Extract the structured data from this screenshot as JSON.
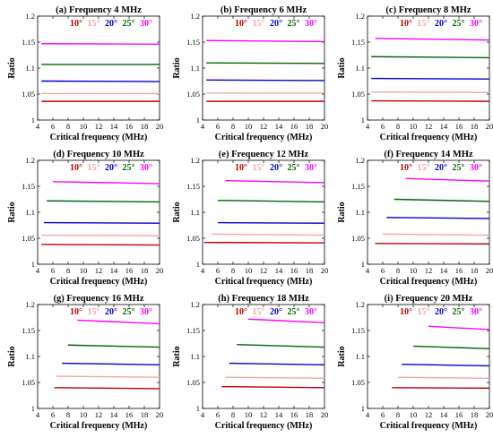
{
  "legend_colors": {
    "10°": "#c00000",
    "15°": "#f4a6a6",
    "20°": "#0000cc",
    "25°": "#006400",
    "30°": "#ff00ff"
  },
  "chart_data": [
    {
      "type": "line",
      "title": "(a) Frequency 4 MHz",
      "xlabel": "Critical frequency (MHz)",
      "ylabel": "Ratio",
      "xlim": [
        4,
        20
      ],
      "ylim": [
        1,
        1.2
      ],
      "xticks": [
        4,
        6,
        8,
        10,
        12,
        14,
        16,
        18,
        20
      ],
      "yticks": [
        1,
        1.05,
        1.1,
        1.15,
        1.2
      ],
      "grid": false,
      "legend_position": "top",
      "series": [
        {
          "name": "10°",
          "color": "#c00000",
          "x": [
            4.5,
            20
          ],
          "y": [
            1.036,
            1.036
          ]
        },
        {
          "name": "15°",
          "color": "#f4a6a6",
          "x": [
            4.5,
            20
          ],
          "y": [
            1.051,
            1.051
          ]
        },
        {
          "name": "20°",
          "color": "#0000cc",
          "x": [
            4.5,
            20
          ],
          "y": [
            1.075,
            1.074
          ]
        },
        {
          "name": "25°",
          "color": "#006400",
          "x": [
            4.5,
            20
          ],
          "y": [
            1.107,
            1.107
          ]
        },
        {
          "name": "30°",
          "color": "#ff00ff",
          "x": [
            4.5,
            20
          ],
          "y": [
            1.147,
            1.146
          ]
        }
      ]
    },
    {
      "type": "line",
      "title": "(b) Frequency 6 MHz",
      "xlabel": "Critical frequency (MHz)",
      "ylabel": "Ratio",
      "xlim": [
        4,
        20
      ],
      "ylim": [
        1,
        1.2
      ],
      "xticks": [
        4,
        6,
        8,
        10,
        12,
        14,
        16,
        18,
        20
      ],
      "yticks": [
        1,
        1.05,
        1.1,
        1.15,
        1.2
      ],
      "grid": false,
      "legend_position": "top",
      "series": [
        {
          "name": "10°",
          "color": "#c00000",
          "x": [
            4.5,
            20
          ],
          "y": [
            1.036,
            1.036
          ]
        },
        {
          "name": "15°",
          "color": "#f4a6a6",
          "x": [
            4.5,
            20
          ],
          "y": [
            1.052,
            1.052
          ]
        },
        {
          "name": "20°",
          "color": "#0000cc",
          "x": [
            4.5,
            20
          ],
          "y": [
            1.077,
            1.076
          ]
        },
        {
          "name": "25°",
          "color": "#006400",
          "x": [
            4.5,
            20
          ],
          "y": [
            1.11,
            1.109
          ]
        },
        {
          "name": "30°",
          "color": "#ff00ff",
          "x": [
            4.5,
            20
          ],
          "y": [
            1.153,
            1.151
          ]
        }
      ]
    },
    {
      "type": "line",
      "title": "(c) Frequency 8 MHz",
      "xlabel": "Critical frequency (MHz)",
      "ylabel": "Ratio",
      "xlim": [
        4,
        20
      ],
      "ylim": [
        1,
        1.2
      ],
      "xticks": [
        4,
        6,
        8,
        10,
        12,
        14,
        16,
        18,
        20
      ],
      "yticks": [
        1,
        1.05,
        1.1,
        1.15,
        1.2
      ],
      "grid": false,
      "legend_position": "top",
      "series": [
        {
          "name": "10°",
          "color": "#c00000",
          "x": [
            4.5,
            20
          ],
          "y": [
            1.037,
            1.036
          ]
        },
        {
          "name": "15°",
          "color": "#f4a6a6",
          "x": [
            4.5,
            20
          ],
          "y": [
            1.054,
            1.053
          ]
        },
        {
          "name": "20°",
          "color": "#0000cc",
          "x": [
            4.5,
            20
          ],
          "y": [
            1.08,
            1.079
          ]
        },
        {
          "name": "25°",
          "color": "#006400",
          "x": [
            4.5,
            20
          ],
          "y": [
            1.122,
            1.12
          ]
        },
        {
          "name": "30°",
          "color": "#ff00ff",
          "x": [
            5,
            20
          ],
          "y": [
            1.157,
            1.154
          ]
        }
      ]
    },
    {
      "type": "line",
      "title": "(d) Frequency 10 MHz",
      "xlabel": "Critical frequency (MHz)",
      "ylabel": "Ratio",
      "xlim": [
        4,
        20
      ],
      "ylim": [
        1,
        1.2
      ],
      "xticks": [
        4,
        6,
        8,
        10,
        12,
        14,
        16,
        18,
        20
      ],
      "yticks": [
        1,
        1.05,
        1.1,
        1.15,
        1.2
      ],
      "grid": false,
      "legend_position": "top",
      "series": [
        {
          "name": "10°",
          "color": "#c00000",
          "x": [
            4.5,
            20
          ],
          "y": [
            1.038,
            1.037
          ]
        },
        {
          "name": "15°",
          "color": "#f4a6a6",
          "x": [
            4.5,
            20
          ],
          "y": [
            1.056,
            1.055
          ]
        },
        {
          "name": "20°",
          "color": "#0000cc",
          "x": [
            4.8,
            20
          ],
          "y": [
            1.08,
            1.079
          ]
        },
        {
          "name": "25°",
          "color": "#006400",
          "x": [
            5.2,
            20
          ],
          "y": [
            1.122,
            1.12
          ]
        },
        {
          "name": "30°",
          "color": "#ff00ff",
          "x": [
            6,
            20
          ],
          "y": [
            1.159,
            1.155
          ]
        }
      ]
    },
    {
      "type": "line",
      "title": "(e) Frequency 12 MHz",
      "xlabel": "Critical frequency (MHz)",
      "ylabel": "Ratio",
      "xlim": [
        4,
        20
      ],
      "ylim": [
        1,
        1.2
      ],
      "xticks": [
        4,
        6,
        8,
        10,
        12,
        14,
        16,
        18,
        20
      ],
      "yticks": [
        1,
        1.05,
        1.1,
        1.15,
        1.2
      ],
      "grid": false,
      "legend_position": "top",
      "series": [
        {
          "name": "10°",
          "color": "#c00000",
          "x": [
            4.2,
            20
          ],
          "y": [
            1.042,
            1.041
          ]
        },
        {
          "name": "15°",
          "color": "#f4a6a6",
          "x": [
            5.2,
            20
          ],
          "y": [
            1.058,
            1.056
          ]
        },
        {
          "name": "20°",
          "color": "#0000cc",
          "x": [
            6,
            20
          ],
          "y": [
            1.08,
            1.079
          ]
        },
        {
          "name": "25°",
          "color": "#006400",
          "x": [
            6,
            20
          ],
          "y": [
            1.123,
            1.12
          ]
        },
        {
          "name": "30°",
          "color": "#ff00ff",
          "x": [
            7,
            20
          ],
          "y": [
            1.161,
            1.157
          ]
        }
      ]
    },
    {
      "type": "line",
      "title": "(f) Frequency 14 MHz",
      "xlabel": "Critical frequency (MHz)",
      "ylabel": "Ratio",
      "xlim": [
        4,
        20
      ],
      "ylim": [
        1,
        1.2
      ],
      "xticks": [
        4,
        6,
        8,
        10,
        12,
        14,
        16,
        18,
        20
      ],
      "yticks": [
        1,
        1.05,
        1.1,
        1.15,
        1.2
      ],
      "grid": false,
      "legend_position": "top",
      "series": [
        {
          "name": "10°",
          "color": "#c00000",
          "x": [
            5,
            20
          ],
          "y": [
            1.04,
            1.039
          ]
        },
        {
          "name": "15°",
          "color": "#f4a6a6",
          "x": [
            6,
            20
          ],
          "y": [
            1.058,
            1.056
          ]
        },
        {
          "name": "20°",
          "color": "#0000cc",
          "x": [
            6.5,
            20
          ],
          "y": [
            1.09,
            1.088
          ]
        },
        {
          "name": "25°",
          "color": "#006400",
          "x": [
            7.5,
            20
          ],
          "y": [
            1.125,
            1.121
          ]
        },
        {
          "name": "30°",
          "color": "#ff00ff",
          "x": [
            9,
            20
          ],
          "y": [
            1.165,
            1.16
          ]
        }
      ]
    },
    {
      "type": "line",
      "title": "(g) Frequency 16 MHz",
      "xlabel": "Critical frequency (MHz)",
      "ylabel": "Ratio",
      "xlim": [
        4,
        20
      ],
      "ylim": [
        1,
        1.2
      ],
      "xticks": [
        4,
        6,
        8,
        10,
        12,
        14,
        16,
        18,
        20
      ],
      "yticks": [
        1,
        1.05,
        1.1,
        1.15,
        1.2
      ],
      "grid": false,
      "legend_position": "top",
      "series": [
        {
          "name": "10°",
          "color": "#c00000",
          "x": [
            6.2,
            20
          ],
          "y": [
            1.04,
            1.038
          ]
        },
        {
          "name": "15°",
          "color": "#f4a6a6",
          "x": [
            6.5,
            20
          ],
          "y": [
            1.062,
            1.06
          ]
        },
        {
          "name": "20°",
          "color": "#0000cc",
          "x": [
            7.2,
            20
          ],
          "y": [
            1.087,
            1.084
          ]
        },
        {
          "name": "25°",
          "color": "#006400",
          "x": [
            8,
            20
          ],
          "y": [
            1.122,
            1.118
          ]
        },
        {
          "name": "30°",
          "color": "#ff00ff",
          "x": [
            9.2,
            20
          ],
          "y": [
            1.17,
            1.163
          ]
        }
      ]
    },
    {
      "type": "line",
      "title": "(h) Frequency 18 MHz",
      "xlabel": "Critical frequency (MHz)",
      "ylabel": "Ratio",
      "xlim": [
        4,
        20
      ],
      "ylim": [
        1,
        1.2
      ],
      "xticks": [
        4,
        6,
        8,
        10,
        12,
        14,
        16,
        18,
        20
      ],
      "yticks": [
        1,
        1.05,
        1.1,
        1.15,
        1.2
      ],
      "grid": false,
      "legend_position": "top",
      "series": [
        {
          "name": "10°",
          "color": "#c00000",
          "x": [
            6.5,
            20
          ],
          "y": [
            1.042,
            1.04
          ]
        },
        {
          "name": "15°",
          "color": "#f4a6a6",
          "x": [
            7,
            20
          ],
          "y": [
            1.06,
            1.058
          ]
        },
        {
          "name": "20°",
          "color": "#0000cc",
          "x": [
            7.5,
            20
          ],
          "y": [
            1.087,
            1.084
          ]
        },
        {
          "name": "25°",
          "color": "#006400",
          "x": [
            8.5,
            20
          ],
          "y": [
            1.123,
            1.118
          ]
        },
        {
          "name": "30°",
          "color": "#ff00ff",
          "x": [
            10,
            20
          ],
          "y": [
            1.172,
            1.165
          ]
        }
      ]
    },
    {
      "type": "line",
      "title": "(i) Frequency 20 MHz",
      "xlabel": "Critical frequency (MHz)",
      "ylabel": "Ratio",
      "xlim": [
        4,
        20
      ],
      "ylim": [
        1,
        1.2
      ],
      "xticks": [
        4,
        6,
        8,
        10,
        12,
        14,
        16,
        18,
        20
      ],
      "yticks": [
        1,
        1.05,
        1.1,
        1.15,
        1.2
      ],
      "grid": false,
      "legend_position": "top",
      "series": [
        {
          "name": "10°",
          "color": "#c00000",
          "x": [
            7.2,
            20
          ],
          "y": [
            1.04,
            1.039
          ]
        },
        {
          "name": "15°",
          "color": "#f4a6a6",
          "x": [
            8,
            20
          ],
          "y": [
            1.06,
            1.058
          ]
        },
        {
          "name": "20°",
          "color": "#0000cc",
          "x": [
            8.5,
            20
          ],
          "y": [
            1.085,
            1.082
          ]
        },
        {
          "name": "25°",
          "color": "#006400",
          "x": [
            10,
            20
          ],
          "y": [
            1.12,
            1.115
          ]
        },
        {
          "name": "30°",
          "color": "#ff00ff",
          "x": [
            12,
            20
          ],
          "y": [
            1.158,
            1.152
          ]
        }
      ]
    }
  ]
}
